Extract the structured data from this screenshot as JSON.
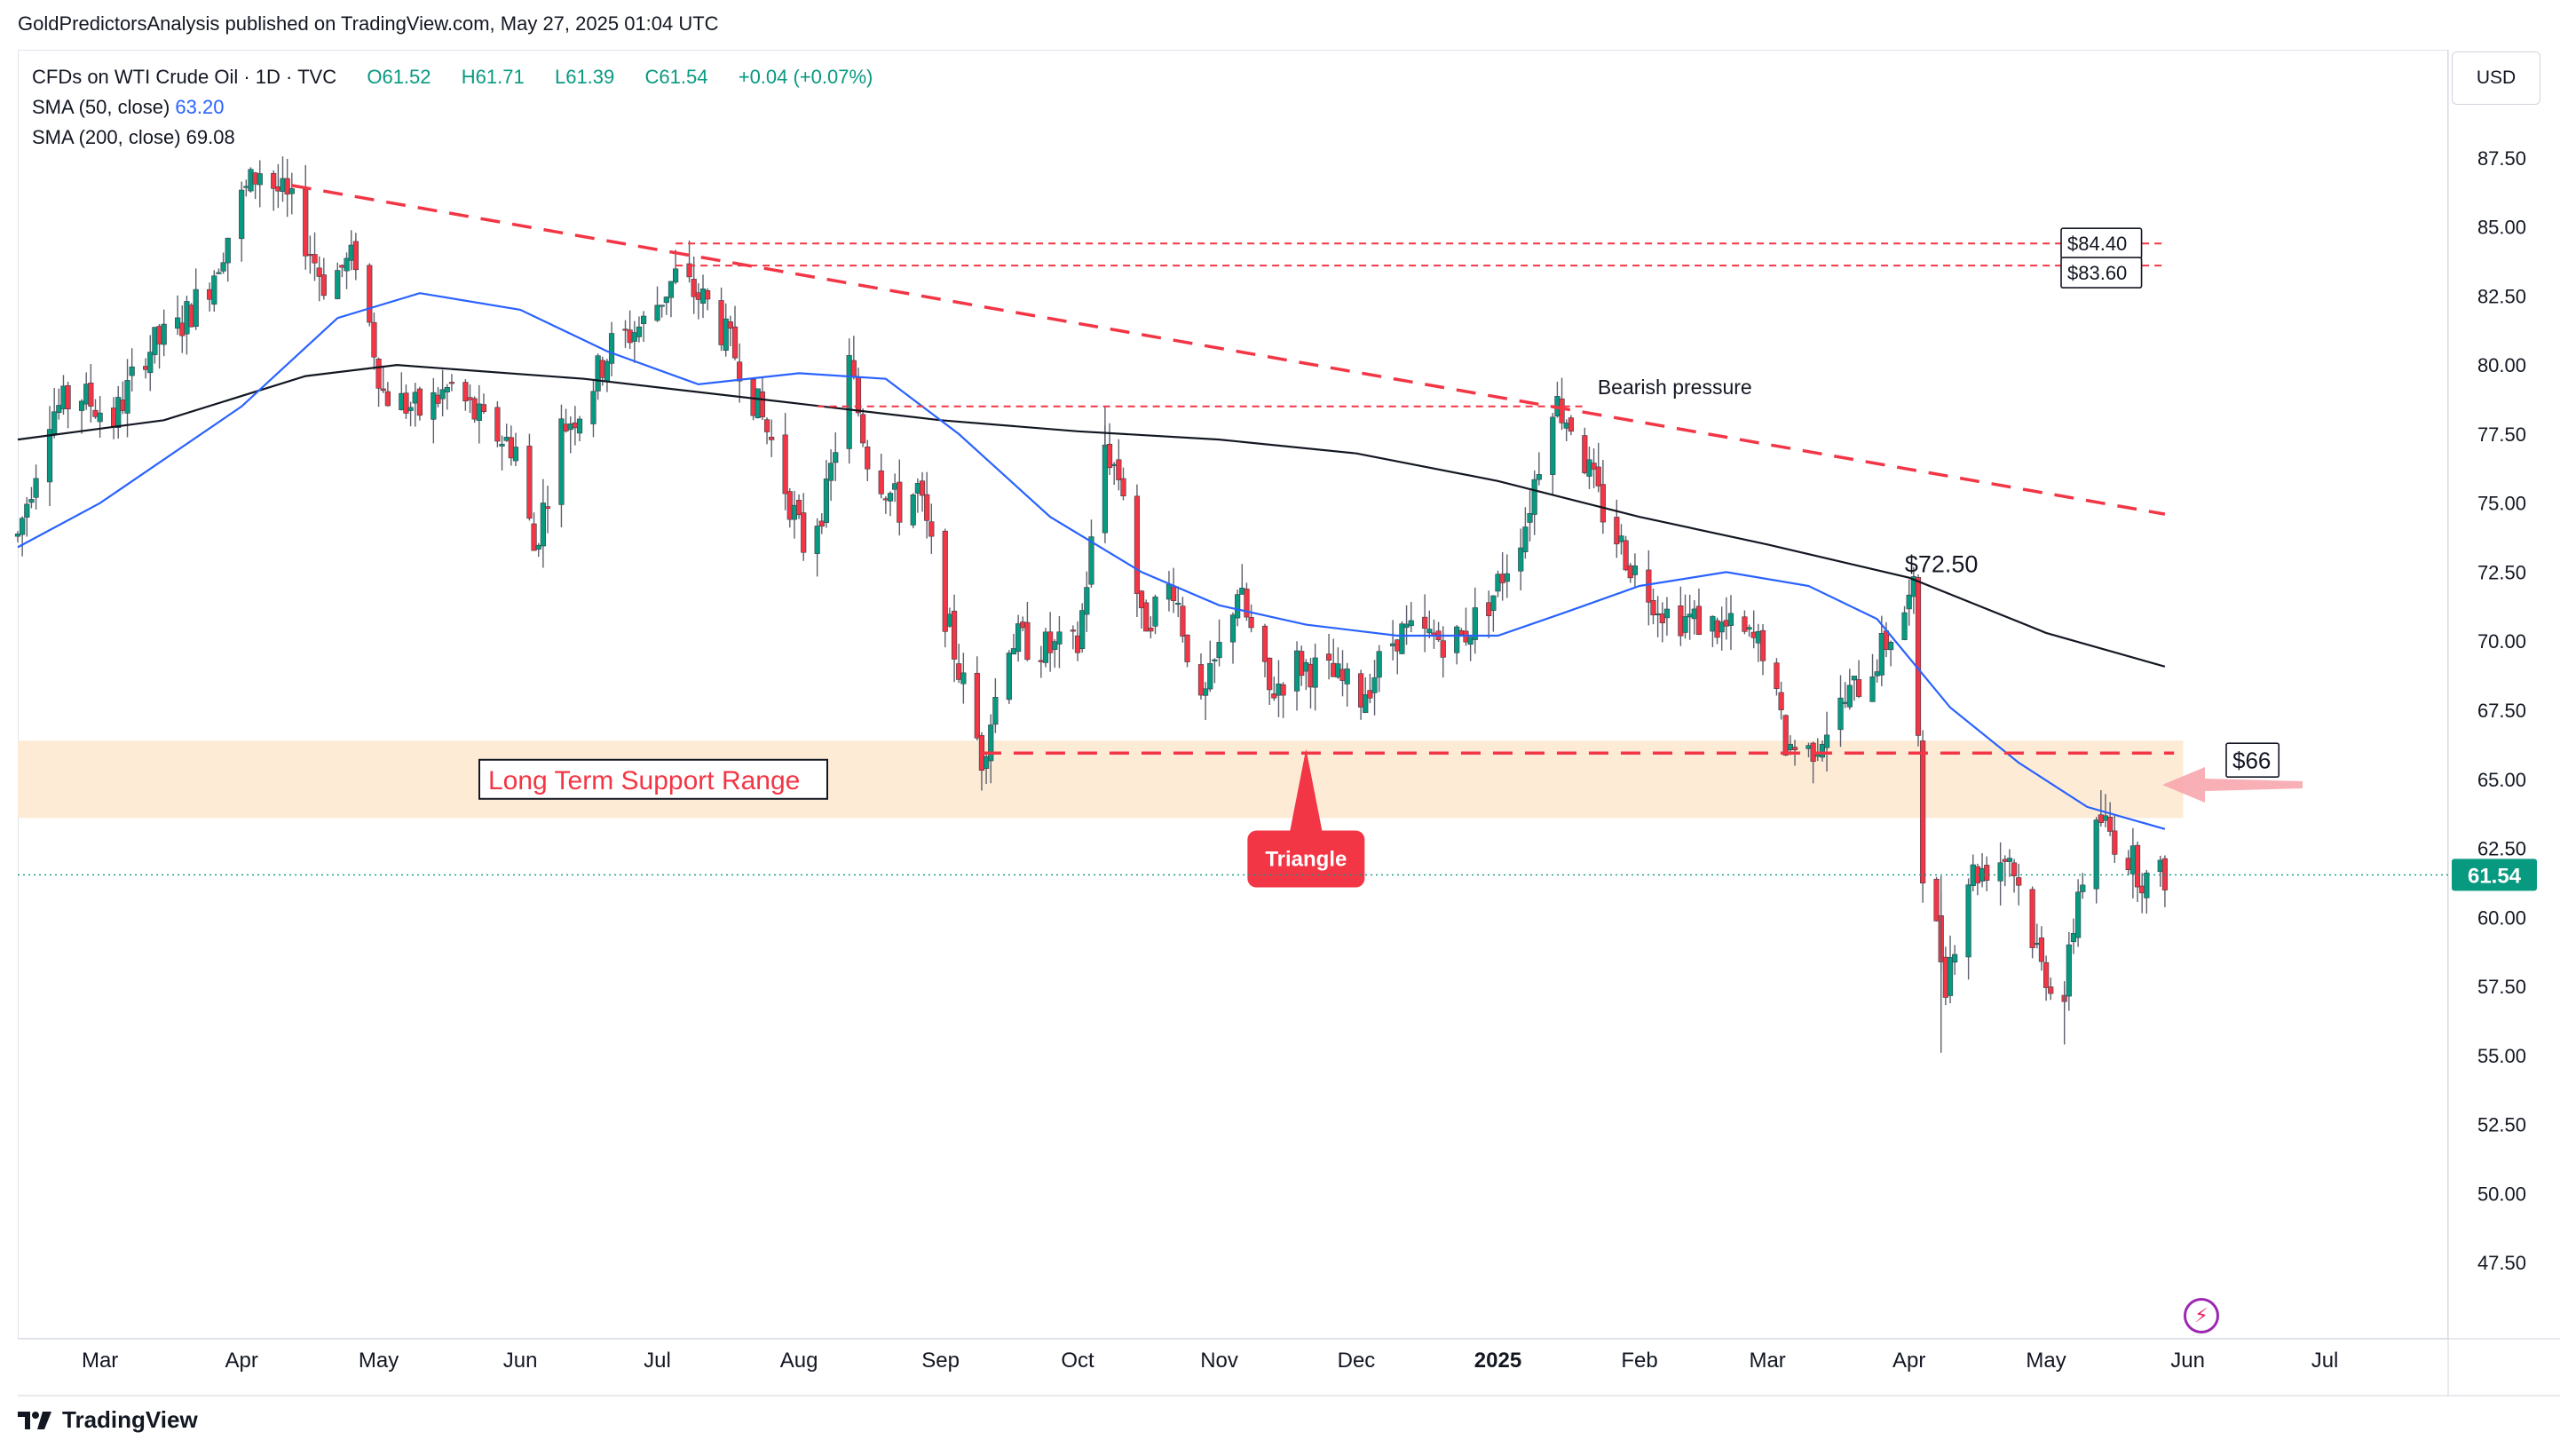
{
  "header": {
    "publish_line": "GoldPredictorsAnalysis published on TradingView.com, May 27, 2025 01:04 UTC"
  },
  "legend": {
    "symbol": "CFDs on WTI Crude Oil · 1D · TVC",
    "open": "O61.52",
    "high": "H61.71",
    "low": "L61.39",
    "close": "C61.54",
    "change": "+0.04 (+0.07%)",
    "sma50_label": "SMA (50, close)",
    "sma50_value": "63.20",
    "sma200_label": "SMA (200, close)",
    "sma200_value": "69.08"
  },
  "currency": "USD",
  "brand": "TradingView",
  "colors": {
    "up": "#089981",
    "down": "#f23645",
    "sma50": "#2962ff",
    "sma200": "#131722",
    "annotation_red": "#f23645",
    "support_zone": "#fde9d2",
    "last_price_bg": "#089981"
  },
  "chart_data": {
    "type": "candlestick",
    "instrument": "CFDs on WTI Crude Oil",
    "interval": "1D",
    "currency": "USD",
    "ylim": [
      45,
      90
    ],
    "y_ticks": [
      "87.50",
      "85.00",
      "82.50",
      "80.00",
      "77.50",
      "75.00",
      "72.50",
      "70.00",
      "67.50",
      "65.00",
      "62.50",
      "60.00",
      "57.50",
      "55.00",
      "52.50",
      "50.00",
      "47.50"
    ],
    "y_tick_values": [
      87.5,
      85,
      82.5,
      80,
      77.5,
      75,
      72.5,
      70,
      67.5,
      65,
      62.5,
      60,
      57.5,
      55,
      52.5,
      50,
      47.5
    ],
    "x_ticks": [
      "Mar",
      "Apr",
      "May",
      "Jun",
      "Jul",
      "Aug",
      "Sep",
      "Oct",
      "Nov",
      "Dec",
      "2025",
      "Feb",
      "Mar",
      "Apr",
      "May",
      "Jun",
      "Jul"
    ],
    "x_tick_dates": [
      "2024-03-01",
      "2024-04-01",
      "2024-05-01",
      "2024-06-01",
      "2024-07-01",
      "2024-08-01",
      "2024-09-01",
      "2024-10-01",
      "2024-11-01",
      "2024-12-01",
      "2025-01-01",
      "2025-02-01",
      "2025-03-01",
      "2025-04-01",
      "2025-05-01",
      "2025-06-01",
      "2025-07-01"
    ],
    "x_range": [
      "2024-02-12",
      "2025-07-28"
    ],
    "price_path": [
      [
        "2024-02-12",
        73.8
      ],
      [
        "2024-02-19",
        78.3
      ],
      [
        "2024-02-26",
        78.9
      ],
      [
        "2024-03-04",
        78.0
      ],
      [
        "2024-03-11",
        80.5
      ],
      [
        "2024-03-18",
        81.3
      ],
      [
        "2024-03-25",
        83.0
      ],
      [
        "2024-04-01",
        86.0
      ],
      [
        "2024-04-05",
        87.1
      ],
      [
        "2024-04-12",
        85.7
      ],
      [
        "2024-04-19",
        83.0
      ],
      [
        "2024-04-26",
        83.9
      ],
      [
        "2024-05-02",
        79.0
      ],
      [
        "2024-05-10",
        78.3
      ],
      [
        "2024-05-17",
        79.2
      ],
      [
        "2024-05-24",
        77.8
      ],
      [
        "2024-05-31",
        77.0
      ],
      [
        "2024-06-04",
        73.3
      ],
      [
        "2024-06-10",
        77.7
      ],
      [
        "2024-06-14",
        78.4
      ],
      [
        "2024-06-21",
        80.7
      ],
      [
        "2024-06-28",
        81.5
      ],
      [
        "2024-07-05",
        83.2
      ],
      [
        "2024-07-12",
        82.2
      ],
      [
        "2024-07-19",
        80.1
      ],
      [
        "2024-07-26",
        77.2
      ],
      [
        "2024-08-02",
        73.5
      ],
      [
        "2024-08-07",
        75.2
      ],
      [
        "2024-08-12",
        80.0
      ],
      [
        "2024-08-16",
        76.7
      ],
      [
        "2024-08-23",
        74.8
      ],
      [
        "2024-08-27",
        75.5
      ],
      [
        "2024-09-03",
        70.3
      ],
      [
        "2024-09-10",
        65.8
      ],
      [
        "2024-09-16",
        70.1
      ],
      [
        "2024-09-25",
        69.7
      ],
      [
        "2024-10-01",
        69.8
      ],
      [
        "2024-10-07",
        77.1
      ],
      [
        "2024-10-11",
        75.6
      ],
      [
        "2024-10-15",
        70.6
      ],
      [
        "2024-10-22",
        72.1
      ],
      [
        "2024-10-28",
        67.4
      ],
      [
        "2024-11-05",
        71.9
      ],
      [
        "2024-11-12",
        68.1
      ],
      [
        "2024-11-18",
        69.2
      ],
      [
        "2024-11-26",
        68.7
      ],
      [
        "2024-12-02",
        68.0
      ],
      [
        "2024-12-10",
        70.3
      ],
      [
        "2024-12-17",
        70.1
      ],
      [
        "2024-12-24",
        70.1
      ],
      [
        "2024-12-31",
        71.7
      ],
      [
        "2025-01-07",
        74.3
      ],
      [
        "2025-01-13",
        78.8
      ],
      [
        "2025-01-17",
        77.9
      ],
      [
        "2025-01-24",
        74.7
      ],
      [
        "2025-01-31",
        72.5
      ],
      [
        "2025-02-07",
        71.0
      ],
      [
        "2025-02-14",
        70.7
      ],
      [
        "2025-02-21",
        70.4
      ],
      [
        "2025-02-28",
        69.8
      ],
      [
        "2025-03-05",
        66.3
      ],
      [
        "2025-03-10",
        66.0
      ],
      [
        "2025-03-17",
        67.6
      ],
      [
        "2025-03-24",
        69.1
      ],
      [
        "2025-04-02",
        71.7
      ],
      [
        "2025-04-04",
        61.9
      ],
      [
        "2025-04-09",
        57.8
      ],
      [
        "2025-04-14",
        61.5
      ],
      [
        "2025-04-23",
        62.3
      ],
      [
        "2025-04-30",
        58.2
      ],
      [
        "2025-05-05",
        57.1
      ],
      [
        "2025-05-08",
        61.0
      ],
      [
        "2025-05-13",
        63.5
      ],
      [
        "2025-05-20",
        62.0
      ],
      [
        "2025-05-23",
        61.3
      ],
      [
        "2025-05-27",
        61.54
      ]
    ],
    "sma50_points": [
      [
        "2024-02-12",
        73.4
      ],
      [
        "2024-03-01",
        75.0
      ],
      [
        "2024-04-01",
        78.5
      ],
      [
        "2024-04-22",
        81.7
      ],
      [
        "2024-05-10",
        82.6
      ],
      [
        "2024-06-01",
        82.0
      ],
      [
        "2024-06-20",
        80.5
      ],
      [
        "2024-07-10",
        79.3
      ],
      [
        "2024-08-01",
        79.7
      ],
      [
        "2024-08-20",
        79.5
      ],
      [
        "2024-09-05",
        77.5
      ],
      [
        "2024-09-25",
        74.5
      ],
      [
        "2024-10-15",
        72.5
      ],
      [
        "2024-11-01",
        71.3
      ],
      [
        "2024-11-20",
        70.6
      ],
      [
        "2024-12-10",
        70.2
      ],
      [
        "2025-01-01",
        70.2
      ],
      [
        "2025-01-15",
        71.0
      ],
      [
        "2025-02-01",
        72.0
      ],
      [
        "2025-02-20",
        72.5
      ],
      [
        "2025-03-10",
        72.0
      ],
      [
        "2025-03-25",
        70.8
      ],
      [
        "2025-04-10",
        67.6
      ],
      [
        "2025-04-25",
        65.6
      ],
      [
        "2025-05-10",
        64.0
      ],
      [
        "2025-05-27",
        63.2
      ]
    ],
    "sma200_points": [
      [
        "2024-02-12",
        77.3
      ],
      [
        "2024-03-15",
        78.0
      ],
      [
        "2024-04-15",
        79.6
      ],
      [
        "2024-05-05",
        80.0
      ],
      [
        "2024-06-15",
        79.5
      ],
      [
        "2024-08-01",
        78.6
      ],
      [
        "2024-09-01",
        78.0
      ],
      [
        "2024-10-01",
        77.6
      ],
      [
        "2024-11-01",
        77.3
      ],
      [
        "2024-12-01",
        76.8
      ],
      [
        "2025-01-01",
        75.8
      ],
      [
        "2025-02-01",
        74.5
      ],
      [
        "2025-03-01",
        73.5
      ],
      [
        "2025-04-01",
        72.3
      ],
      [
        "2025-05-01",
        70.3
      ],
      [
        "2025-05-27",
        69.08
      ]
    ],
    "series": [
      {
        "name": "SMA (50, close)",
        "last": 63.2
      },
      {
        "name": "SMA (200, close)",
        "last": 69.08
      }
    ],
    "last_price": 61.54,
    "annotations": {
      "trendline": {
        "from": [
          "2024-04-12",
          86.5
        ],
        "to": [
          "2025-05-27",
          74.6
        ]
      },
      "resistance_84_40": {
        "label": "$84.40",
        "price": 84.4,
        "from": "2024-07-05"
      },
      "resistance_83_60": {
        "label": "$83.60",
        "price": 83.6,
        "from": "2024-07-05"
      },
      "resistance_78_5": {
        "price": 78.5,
        "from": "2024-08-05",
        "to": "2025-01-20"
      },
      "bearish_pressure": {
        "label": "Bearish pressure",
        "date": "2025-01-17",
        "price": 79.2
      },
      "level_72_50": {
        "label": "$72.50",
        "date": "2025-04-02",
        "price": 72.5
      },
      "level_66": {
        "label": "$66",
        "price": 65.95,
        "from": "2024-09-10"
      },
      "support_zone": {
        "label": "Long Term Support Range",
        "from_price": 63.6,
        "to_price": 66.4
      },
      "triangle": {
        "label": "Triangle",
        "date": "2024-11-20",
        "price": 66.1
      }
    }
  }
}
